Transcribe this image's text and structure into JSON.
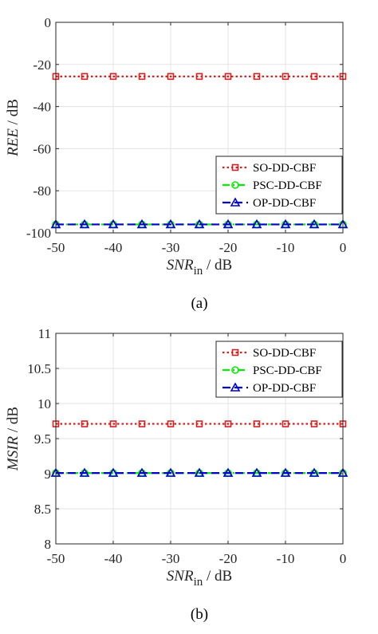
{
  "chart_data": [
    {
      "type": "line",
      "caption": "(a)",
      "ylabel": {
        "italic": "REE",
        "rest": " / dB"
      },
      "xlabel": {
        "italic": "SNR",
        "sub": "in",
        "rest": " / dB"
      },
      "xlim": [
        -50,
        0
      ],
      "ylim": [
        -100,
        0
      ],
      "xticks": [
        -50,
        -40,
        -30,
        -20,
        -10,
        0
      ],
      "yticks": [
        0,
        -20,
        -40,
        -60,
        -80,
        -100
      ],
      "grid": true,
      "legend_position": "lower-right",
      "x": [
        -50,
        -45,
        -40,
        -35,
        -30,
        -25,
        -20,
        -15,
        -10,
        -5,
        0
      ],
      "series": [
        {
          "name": "SO-DD-CBF",
          "color": "#d62020",
          "marker": "square",
          "dash": "dotted",
          "values": [
            -25.7,
            -25.7,
            -25.7,
            -25.7,
            -25.7,
            -25.7,
            -25.7,
            -25.7,
            -25.7,
            -25.7,
            -25.7
          ]
        },
        {
          "name": "PSC-DD-CBF",
          "color": "#00ee00",
          "marker": "circle",
          "dash": "dashdot",
          "values": [
            -96,
            -96,
            -96,
            -96,
            -96,
            -96,
            -96,
            -96,
            -96,
            -96,
            -96
          ]
        },
        {
          "name": "OP-DD-CBF",
          "color": "#0000cc",
          "marker": "triangle",
          "dash": "dashed",
          "values": [
            -96,
            -96,
            -96,
            -96,
            -96,
            -96,
            -96,
            -96,
            -96,
            -96,
            -96
          ]
        }
      ]
    },
    {
      "type": "line",
      "caption": "(b)",
      "ylabel": {
        "italic": "MSIR",
        "rest": " / dB"
      },
      "xlabel": {
        "italic": "SNR",
        "sub": "in",
        "rest": " / dB"
      },
      "xlim": [
        -50,
        0
      ],
      "ylim": [
        8,
        11
      ],
      "xticks": [
        -50,
        -40,
        -30,
        -20,
        -10,
        0
      ],
      "yticks": [
        11,
        10.5,
        10,
        9.5,
        9,
        8.5,
        8
      ],
      "grid": true,
      "legend_position": "top-right",
      "x": [
        -50,
        -45,
        -40,
        -35,
        -30,
        -25,
        -20,
        -15,
        -10,
        -5,
        0
      ],
      "series": [
        {
          "name": "SO-DD-CBF",
          "color": "#d62020",
          "marker": "square",
          "dash": "dotted",
          "values": [
            9.71,
            9.71,
            9.71,
            9.71,
            9.71,
            9.71,
            9.71,
            9.71,
            9.71,
            9.71,
            9.71
          ]
        },
        {
          "name": "PSC-DD-CBF",
          "color": "#00ee00",
          "marker": "circle",
          "dash": "dashdot",
          "values": [
            9.01,
            9.01,
            9.01,
            9.01,
            9.01,
            9.01,
            9.01,
            9.01,
            9.01,
            9.01,
            9.01
          ]
        },
        {
          "name": "OP-DD-CBF",
          "color": "#0000cc",
          "marker": "triangle",
          "dash": "dashed",
          "values": [
            9.01,
            9.01,
            9.01,
            9.01,
            9.01,
            9.01,
            9.01,
            9.01,
            9.01,
            9.01,
            9.01
          ]
        }
      ]
    }
  ]
}
